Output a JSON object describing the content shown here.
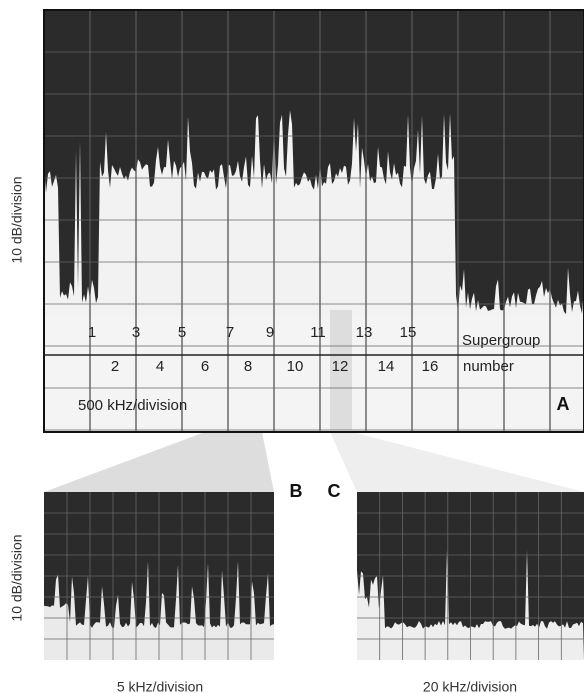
{
  "panel_a": {
    "y_label": "10 dB/division",
    "supergroups_top": [
      "1",
      "3",
      "5",
      "7",
      "9",
      "11",
      "13",
      "15"
    ],
    "supergroups_bottom": [
      "2",
      "4",
      "6",
      "8",
      "10",
      "12",
      "14",
      "16"
    ],
    "legend_line1": "Supergroup",
    "legend_line2": "number",
    "x_scale": "500 kHz/division",
    "tag": "A"
  },
  "panel_b": {
    "tag": "B",
    "y_label": "10 dB/division",
    "x_scale": "5 kHz/division"
  },
  "panel_c": {
    "tag": "C",
    "x_scale": "20 kHz/division"
  }
}
